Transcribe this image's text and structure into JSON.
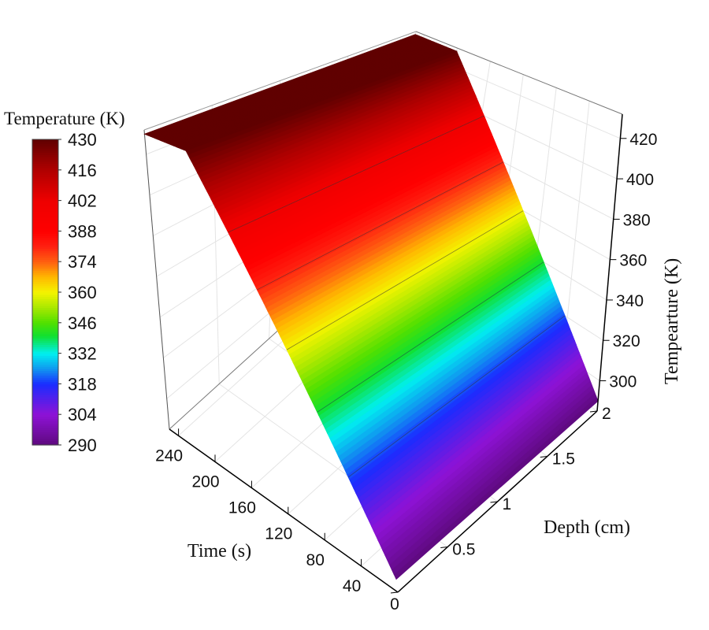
{
  "chart_data": {
    "type": "surface3d",
    "title": "",
    "x_axis": {
      "label": "Time (s)",
      "range": [
        0,
        250
      ],
      "ticks": [
        40,
        80,
        120,
        160,
        200,
        240
      ]
    },
    "y_axis": {
      "label": "Depth (cm)",
      "range": [
        0,
        2
      ],
      "ticks": [
        0,
        0.5,
        1,
        1.5,
        2
      ]
    },
    "z_axis": {
      "label": "Tempearture (K)",
      "range": [
        285,
        432
      ],
      "ticks": [
        300,
        320,
        340,
        360,
        380,
        400,
        420
      ]
    },
    "surface_profile": {
      "description_units": "temperature (K) vs time (s), constant along depth",
      "time": [
        0,
        200,
        250
      ],
      "temperature": [
        290,
        430,
        430
      ]
    },
    "contour_levels": [
      320,
      340,
      360,
      380,
      400
    ],
    "colorbar": {
      "title": "Temperature (K)",
      "ticks": [
        430,
        416,
        402,
        388,
        374,
        360,
        346,
        332,
        318,
        304,
        290
      ],
      "range": [
        290,
        430
      ],
      "colormap": [
        [
          290,
          "#5e0a7e"
        ],
        [
          304,
          "#8e12d6"
        ],
        [
          318,
          "#1a2cff"
        ],
        [
          325,
          "#1098f0"
        ],
        [
          332,
          "#00f0f0"
        ],
        [
          340,
          "#10e030"
        ],
        [
          346,
          "#50e000"
        ],
        [
          353,
          "#a8e800"
        ],
        [
          360,
          "#f4f400"
        ],
        [
          367,
          "#ffb800"
        ],
        [
          374,
          "#ff6010"
        ],
        [
          381,
          "#ff2010"
        ],
        [
          388,
          "#ff0000"
        ],
        [
          402,
          "#ee0000"
        ],
        [
          416,
          "#b00000"
        ],
        [
          430,
          "#600000"
        ]
      ]
    },
    "grid": true
  }
}
